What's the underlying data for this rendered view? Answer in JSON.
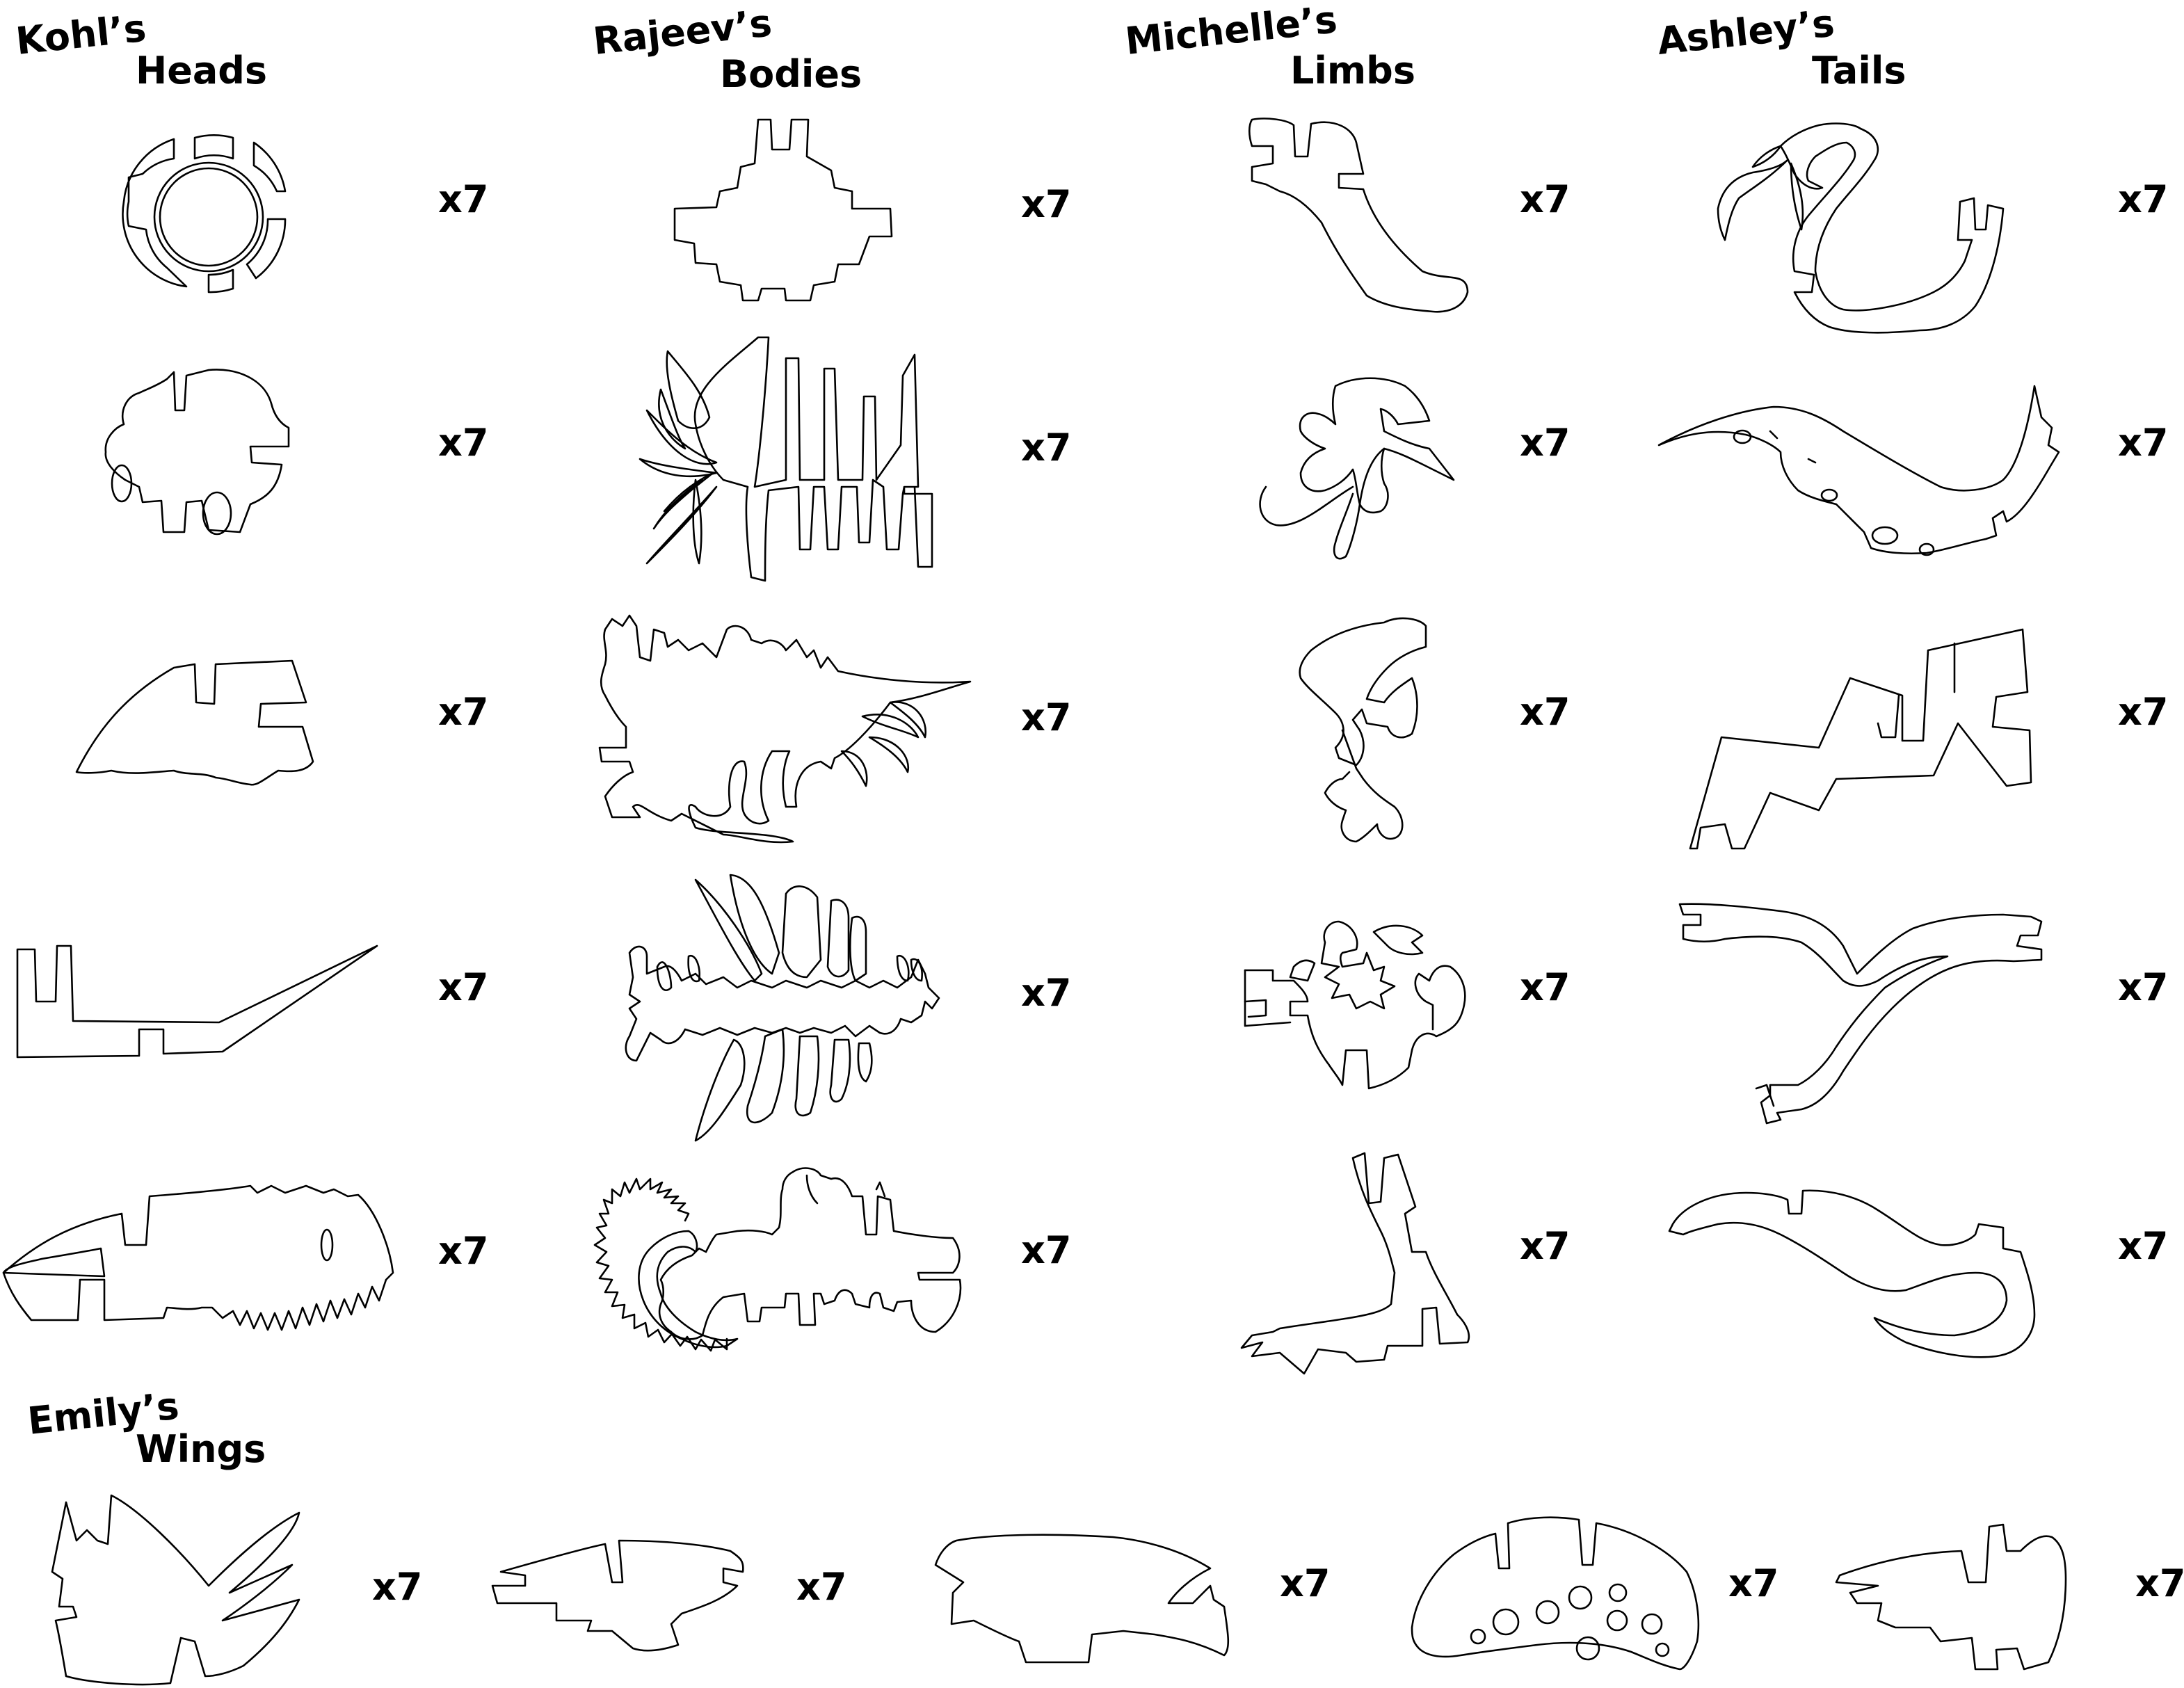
{
  "groups": {
    "heads": {
      "owner": "Kohl’s",
      "part": "Heads"
    },
    "bodies": {
      "owner": "Rajeev’s",
      "part": "Bodies"
    },
    "limbs": {
      "owner": "Michelle’s",
      "part": "Limbs"
    },
    "tails": {
      "owner": "Ashley’s",
      "part": "Tails"
    },
    "wings": {
      "owner": "Emily’s",
      "part": "Wings"
    }
  },
  "quantity_label": "x7",
  "colors": {
    "outline": "#000000",
    "background": "#ffffff"
  }
}
